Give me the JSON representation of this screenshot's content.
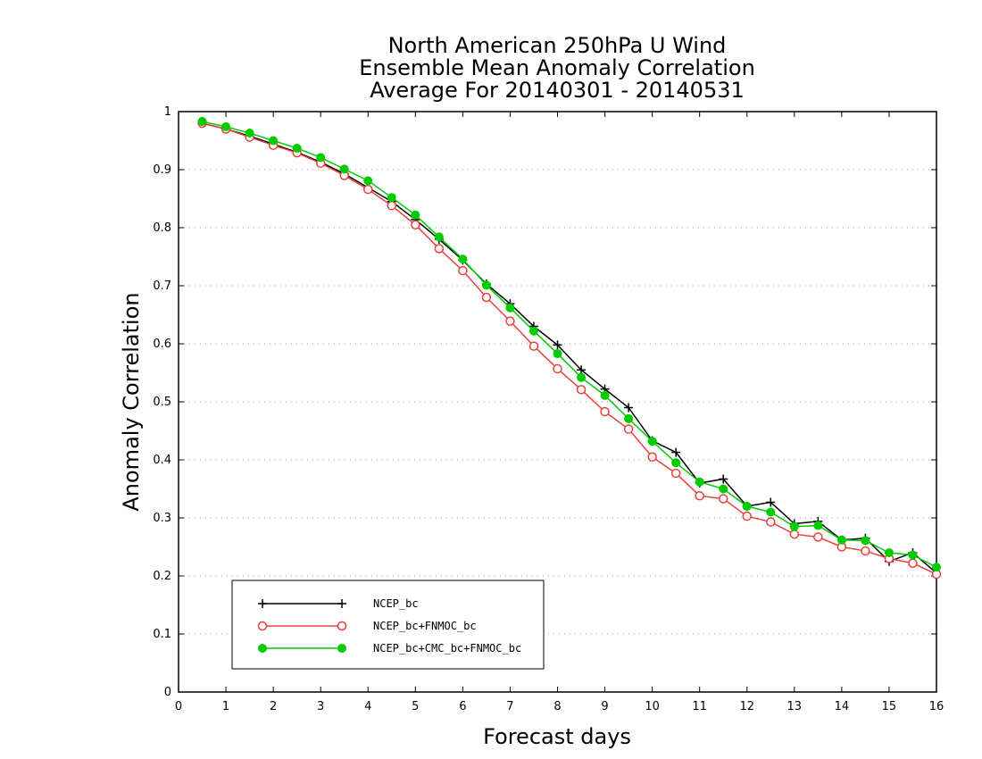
{
  "chart_data": {
    "type": "line",
    "title": [
      "North American 250hPa U Wind",
      "Ensemble Mean Anomaly Correlation",
      "Average For 20140301 - 20140531"
    ],
    "xlabel": "Forecast days",
    "ylabel": "Anomaly Correlation",
    "xlim": [
      0,
      16
    ],
    "ylim": [
      0,
      1
    ],
    "xticks": [
      "0",
      "1",
      "2",
      "3",
      "4",
      "5",
      "6",
      "7",
      "8",
      "9",
      "10",
      "11",
      "12",
      "13",
      "14",
      "15",
      "16"
    ],
    "yticks": [
      "0",
      "0.1",
      "0.2",
      "0.3",
      "0.4",
      "0.5",
      "0.6",
      "0.7",
      "0.8",
      "0.9",
      "1"
    ],
    "grid": "horizontal dotted",
    "legend_position": "bottom-left",
    "x": [
      0.5,
      1,
      1.5,
      2,
      2.5,
      3,
      3.5,
      4,
      4.5,
      5,
      5.5,
      6,
      6.5,
      7,
      7.5,
      8,
      8.5,
      9,
      9.5,
      10,
      10.5,
      11,
      11.5,
      12,
      12.5,
      13,
      13.5,
      14,
      14.5,
      15,
      15.5,
      16
    ],
    "series": [
      {
        "name": "NCEP_bc",
        "color": "#000000",
        "marker": "plus",
        "values": [
          0.98,
          0.97,
          0.958,
          0.944,
          0.93,
          0.913,
          0.893,
          0.869,
          0.845,
          0.814,
          0.78,
          0.744,
          0.703,
          0.669,
          0.63,
          0.598,
          0.555,
          0.522,
          0.49,
          0.433,
          0.413,
          0.36,
          0.367,
          0.32,
          0.327,
          0.29,
          0.294,
          0.262,
          0.265,
          0.225,
          0.24,
          0.205
        ]
      },
      {
        "name": "NCEP_bc+FNMOC_bc",
        "color": "#e8403a",
        "marker": "open-circle",
        "values": [
          0.98,
          0.97,
          0.956,
          0.942,
          0.929,
          0.911,
          0.89,
          0.866,
          0.838,
          0.805,
          0.764,
          0.726,
          0.68,
          0.639,
          0.596,
          0.557,
          0.521,
          0.483,
          0.453,
          0.405,
          0.377,
          0.338,
          0.333,
          0.303,
          0.293,
          0.272,
          0.267,
          0.25,
          0.243,
          0.23,
          0.222,
          0.203
        ]
      },
      {
        "name": "NCEP_bc+CMC_bc+FNMOC_bc",
        "color": "#00cc00",
        "marker": "filled-circle",
        "values": [
          0.983,
          0.974,
          0.963,
          0.95,
          0.937,
          0.921,
          0.901,
          0.881,
          0.852,
          0.822,
          0.784,
          0.746,
          0.701,
          0.662,
          0.622,
          0.583,
          0.542,
          0.511,
          0.471,
          0.432,
          0.395,
          0.362,
          0.35,
          0.32,
          0.31,
          0.285,
          0.287,
          0.262,
          0.261,
          0.24,
          0.236,
          0.215
        ]
      }
    ]
  }
}
